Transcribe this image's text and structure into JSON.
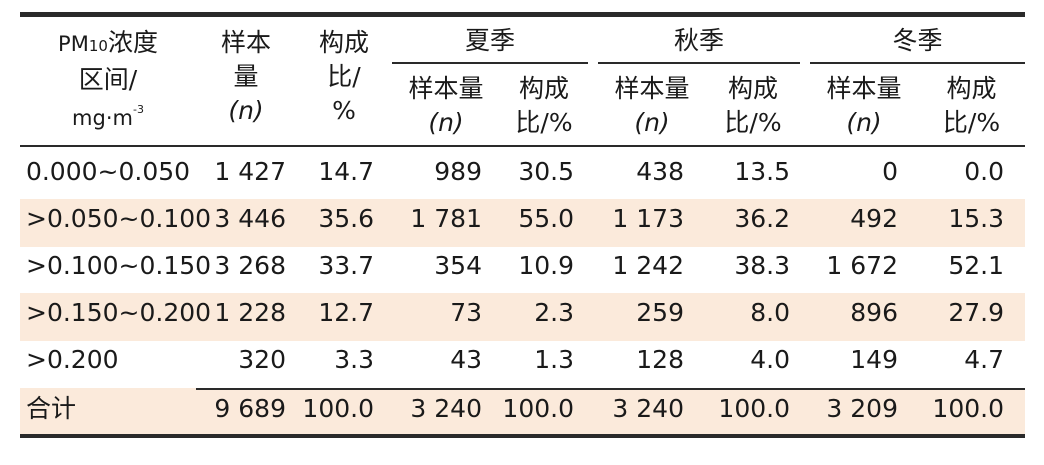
{
  "table": {
    "colors": {
      "band": "#fbeadb",
      "rule": "#2a2a2a"
    },
    "header": {
      "col0_lines": [
        "PM",
        "10",
        "浓度",
        "区间/",
        "mg·m",
        "-3"
      ],
      "samples": [
        "样本",
        "量",
        "(n)"
      ],
      "ratio": [
        "构成",
        "比/",
        "%"
      ],
      "seasons": [
        "夏季",
        "秋季",
        "冬季"
      ],
      "sub_samples": [
        "样本量",
        "(n)"
      ],
      "sub_ratio": [
        "构成",
        "比/%"
      ]
    },
    "rows": [
      {
        "range": "0.000~0.050",
        "n": "1 427",
        "pct": "14.7",
        "su_n": "989",
        "su_p": "30.5",
        "au_n": "438",
        "au_p": "13.5",
        "wi_n": "0",
        "wi_p": "0.0"
      },
      {
        "range": ">0.050~0.100",
        "n": "3 446",
        "pct": "35.6",
        "su_n": "1 781",
        "su_p": "55.0",
        "au_n": "1 173",
        "au_p": "36.2",
        "wi_n": "492",
        "wi_p": "15.3"
      },
      {
        "range": ">0.100~0.150",
        "n": "3 268",
        "pct": "33.7",
        "su_n": "354",
        "su_p": "10.9",
        "au_n": "1 242",
        "au_p": "38.3",
        "wi_n": "1 672",
        "wi_p": "52.1"
      },
      {
        "range": ">0.150~0.200",
        "n": "1 228",
        "pct": "12.7",
        "su_n": "73",
        "su_p": "2.3",
        "au_n": "259",
        "au_p": "8.0",
        "wi_n": "896",
        "wi_p": "27.9"
      },
      {
        "range": ">0.200",
        "n": "320",
        "pct": "3.3",
        "su_n": "43",
        "su_p": "1.3",
        "au_n": "128",
        "au_p": "4.0",
        "wi_n": "149",
        "wi_p": "4.7"
      },
      {
        "range": "合计",
        "n": "9 689",
        "pct": "100.0",
        "su_n": "3 240",
        "su_p": "100.0",
        "au_n": "3 240",
        "au_p": "100.0",
        "wi_n": "3 209",
        "wi_p": "100.0"
      }
    ]
  }
}
